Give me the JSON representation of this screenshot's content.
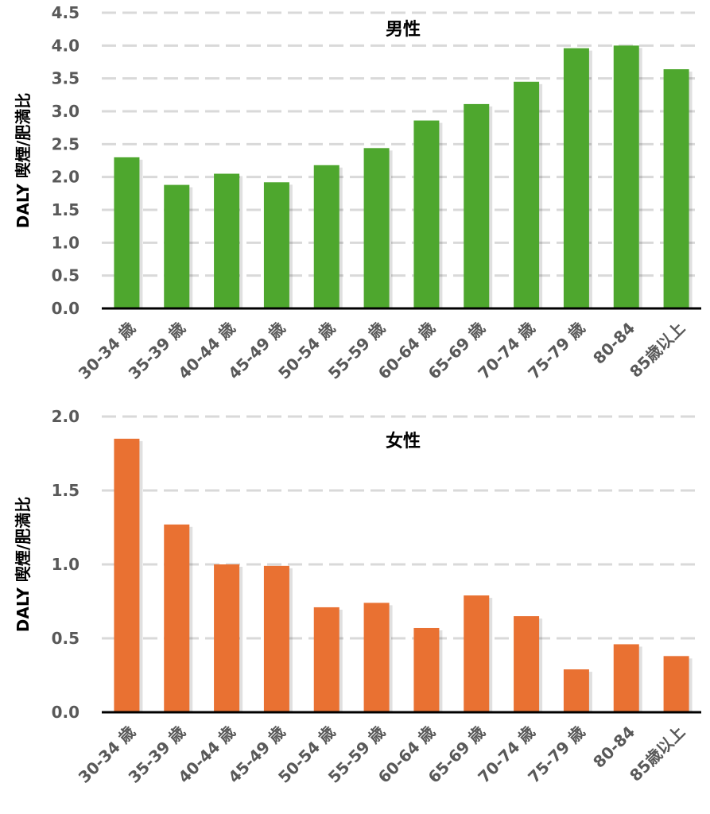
{
  "chart_data": [
    {
      "type": "bar",
      "title": "男性",
      "ylabel": "DALY 喫煙/肥満比",
      "xlabel": "",
      "ylim": [
        0,
        4.5
      ],
      "ytick_step": 0.5,
      "ytick_labels": [
        "0.0",
        "0.5",
        "1.0",
        "1.5",
        "2.0",
        "2.5",
        "3.0",
        "3.5",
        "4.0",
        "4.5"
      ],
      "grid": true,
      "color": "#4ea72e",
      "categories": [
        "30-34 歳",
        "35-39 歳",
        "40-44 歳",
        "45-49 歳",
        "50-54 歳",
        "55-59 歳",
        "60-64 歳",
        "65-69 歳",
        "70-74 歳",
        "75-79 歳",
        "80-84",
        "85歳以上"
      ],
      "values": [
        2.3,
        1.88,
        2.05,
        1.92,
        2.18,
        2.44,
        2.86,
        3.11,
        3.45,
        3.96,
        4.0,
        3.64
      ]
    },
    {
      "type": "bar",
      "title": "女性",
      "ylabel": "DALY 喫煙/肥満比",
      "xlabel": "",
      "ylim": [
        0,
        2.0
      ],
      "ytick_step": 0.5,
      "ytick_labels": [
        "0.0",
        "0.5",
        "1.0",
        "1.5",
        "2.0"
      ],
      "grid": true,
      "color": "#e97132",
      "categories": [
        "30-34 歳",
        "35-39 歳",
        "40-44 歳",
        "45-49 歳",
        "50-54 歳",
        "55-59 歳",
        "60-64 歳",
        "65-69 歳",
        "70-74 歳",
        "75-79 歳",
        "80-84",
        "85歳以上"
      ],
      "values": [
        1.85,
        1.27,
        1.0,
        0.99,
        0.71,
        0.74,
        0.57,
        0.79,
        0.65,
        0.29,
        0.46,
        0.38
      ]
    }
  ]
}
